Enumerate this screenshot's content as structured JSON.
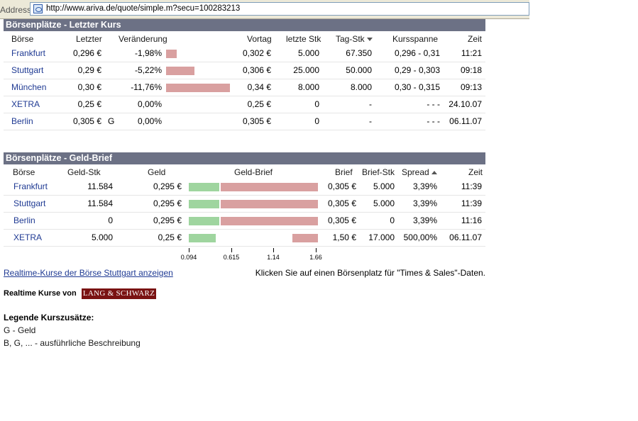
{
  "browser": {
    "address_label": "Address",
    "url": "http://www.ariva.de/quote/simple.m?secu=100283213"
  },
  "colors": {
    "header_bg": "#6c7185",
    "bar_red": "#d9a0a0",
    "bar_green": "#9fd59f",
    "link": "#1f3a93"
  },
  "last_price": {
    "title": "Börsenplätze - Letzter Kurs",
    "columns": [
      "Börse",
      "Letzter",
      "Veränderung",
      "Vortag",
      "letzte Stk",
      "Tag-Stk",
      "Kursspanne",
      "Zeit"
    ],
    "rows": [
      {
        "exchange": "Frankfurt",
        "last": "0,296 €",
        "flag": "",
        "change": "-1,98%",
        "change_value": -1.98,
        "prev": "0,302 €",
        "last_qty": "5.000",
        "day_qty": "67.350",
        "range": "0,296 - 0,31",
        "time": "11:21"
      },
      {
        "exchange": "Stuttgart",
        "last": "0,29 €",
        "flag": "",
        "change": "-5,22%",
        "change_value": -5.22,
        "prev": "0,306 €",
        "last_qty": "25.000",
        "day_qty": "50.000",
        "range": "0,29 - 0,303",
        "time": "09:18"
      },
      {
        "exchange": "München",
        "last": "0,30 €",
        "flag": "",
        "change": "-11,76%",
        "change_value": -11.76,
        "prev": "0,34 €",
        "last_qty": "8.000",
        "day_qty": "8.000",
        "range": "0,30 - 0,315",
        "time": "09:13"
      },
      {
        "exchange": "XETRA",
        "last": "0,25 €",
        "flag": "",
        "change": "0,00%",
        "change_value": 0,
        "prev": "0,25 €",
        "last_qty": "0",
        "day_qty": "-",
        "range": "- - -",
        "time": "24.10.07"
      },
      {
        "exchange": "Berlin",
        "last": "0,305 €",
        "flag": "G",
        "change": "0,00%",
        "change_value": 0,
        "prev": "0,305 €",
        "last_qty": "0",
        "day_qty": "-",
        "range": "- - -",
        "time": "06.11.07"
      }
    ]
  },
  "bid_ask": {
    "title": "Börsenplätze - Geld-Brief",
    "columns": [
      "Börse",
      "Geld-Stk",
      "Geld",
      "Geld-Brief",
      "Brief",
      "Brief-Stk",
      "Spread",
      "Zeit"
    ],
    "rows": [
      {
        "exchange": "Frankfurt",
        "bid_qty": "11.584",
        "bid": "0,295 €",
        "bid_value": 0.295,
        "ask": "0,305 €",
        "ask_value": 0.305,
        "ask_qty": "5.000",
        "spread": "3,39%",
        "time": "11:39"
      },
      {
        "exchange": "Stuttgart",
        "bid_qty": "11.584",
        "bid": "0,295 €",
        "bid_value": 0.295,
        "ask": "0,305 €",
        "ask_value": 0.305,
        "ask_qty": "5.000",
        "spread": "3,39%",
        "time": "11:39"
      },
      {
        "exchange": "Berlin",
        "bid_qty": "0",
        "bid": "0,295 €",
        "bid_value": 0.295,
        "ask": "0,305 €",
        "ask_value": 0.305,
        "ask_qty": "0",
        "spread": "3,39%",
        "time": "11:16"
      },
      {
        "exchange": "XETRA",
        "bid_qty": "5.000",
        "bid": "0,25 €",
        "bid_value": 0.25,
        "ask": "1,50 €",
        "ask_value": 1.5,
        "ask_qty": "17.000",
        "spread": "500,00%",
        "time": "06.11.07"
      }
    ],
    "scale_ticks": [
      "0.094",
      "0.615",
      "1.14",
      "1.66"
    ]
  },
  "footer": {
    "realtime_link": "Realtime-Kurse der Börse Stuttgart anzeigen",
    "note": "Klicken Sie auf einen Börsenplatz für \"Times & Sales\"-Daten.",
    "realtime_label": "Realtime Kurse von",
    "logo_text": "LANG & SCHWARZ",
    "legend_title": "Legende Kurszusätze:",
    "legend_lines": [
      "G - Geld",
      "B, G, ... - ausführliche Beschreibung"
    ]
  }
}
